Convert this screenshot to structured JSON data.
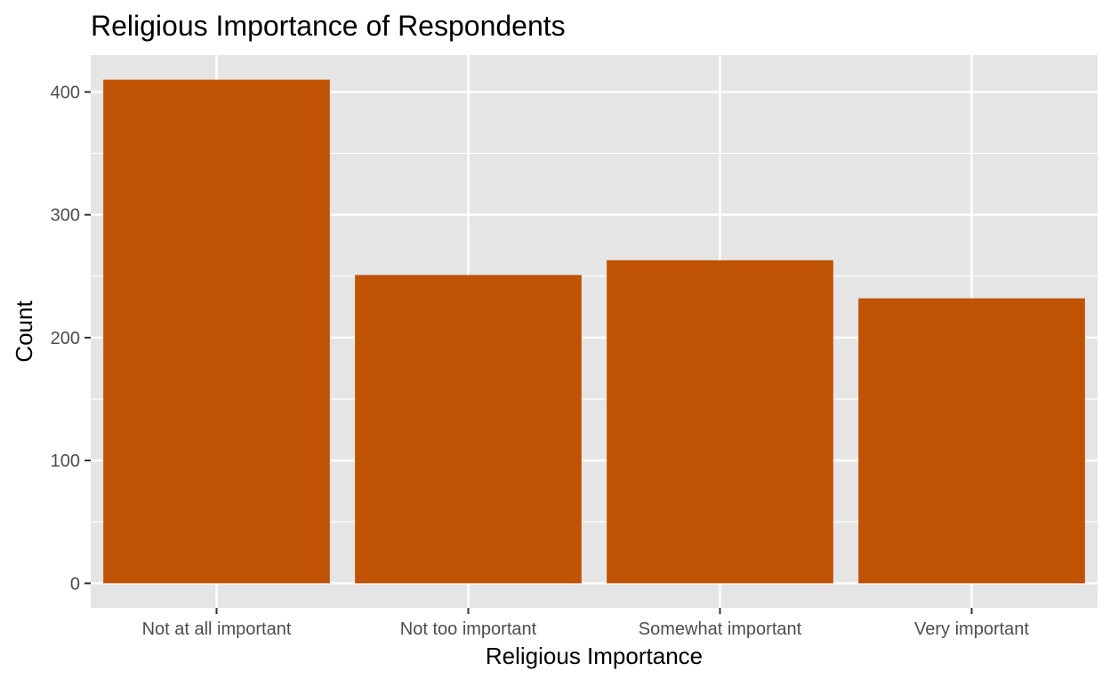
{
  "chart_data": {
    "type": "bar",
    "title": "Religious Importance of Respondents",
    "xlabel": "Religious Importance",
    "ylabel": "Count",
    "categories": [
      "Not at all important",
      "Not too important",
      "Somewhat important",
      "Very important"
    ],
    "values": [
      410,
      251,
      263,
      232
    ],
    "ylim": [
      -20,
      430
    ],
    "yticks": [
      0,
      100,
      200,
      300,
      400
    ],
    "ytick_labels": [
      "0",
      "100",
      "200",
      "300",
      "400"
    ],
    "grid": true,
    "legend": "none",
    "bar_color": "#C05204",
    "panel_color": "#E5E5E5",
    "grid_color": "#FFFFFF"
  }
}
